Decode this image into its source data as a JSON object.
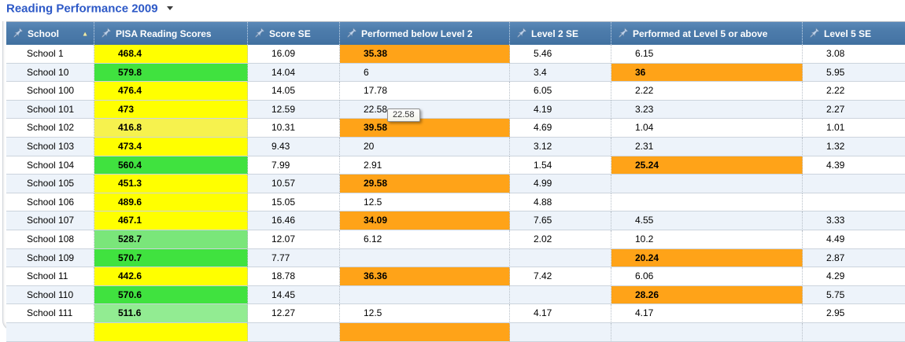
{
  "title": {
    "text": "Reading Performance 2009"
  },
  "tooltip": {
    "text": "22.58"
  },
  "cell_colors": {
    "yellow": "#ffff00",
    "yellow-pale": "#f6f24e",
    "green": "#40e23f",
    "green-light": "#7ae67a",
    "green-lighter": "#92ec92",
    "highlight": "#ffa318"
  },
  "table": {
    "columns": [
      {
        "id": "school",
        "label": "School",
        "sorted": "ascending"
      },
      {
        "id": "score",
        "label": "PISA Reading Scores",
        "sorted": ""
      },
      {
        "id": "score-se",
        "label": "Score SE",
        "sorted": ""
      },
      {
        "id": "below-level2",
        "label": "Performed below Level 2",
        "sorted": ""
      },
      {
        "id": "level2-se",
        "label": "Level 2 SE",
        "sorted": ""
      },
      {
        "id": "at-level5",
        "label": "Performed at Level 5 or above",
        "sorted": ""
      },
      {
        "id": "level5-se",
        "label": "Level 5 SE",
        "sorted": ""
      }
    ],
    "rows": [
      {
        "school": "School 1",
        "score": "468.4",
        "score_color": "yellow",
        "score_se": "16.09",
        "below": "35.38",
        "below_highlight": true,
        "l2_se": "5.46",
        "at_l5": "6.15",
        "l5_highlight": false,
        "l5_se": "3.08"
      },
      {
        "school": "School 10",
        "score": "579.8",
        "score_color": "green",
        "score_se": "14.04",
        "below": "6",
        "below_highlight": false,
        "l2_se": "3.4",
        "at_l5": "36",
        "l5_highlight": true,
        "l5_se": "5.95"
      },
      {
        "school": "School 100",
        "score": "476.4",
        "score_color": "yellow",
        "score_se": "14.05",
        "below": "17.78",
        "below_highlight": false,
        "l2_se": "6.05",
        "at_l5": "2.22",
        "l5_highlight": false,
        "l5_se": "2.22"
      },
      {
        "school": "School 101",
        "score": "473",
        "score_color": "yellow",
        "score_se": "12.59",
        "below": "22.58",
        "below_highlight": false,
        "l2_se": "4.19",
        "at_l5": "3.23",
        "l5_highlight": false,
        "l5_se": "2.27"
      },
      {
        "school": "School 102",
        "score": "416.8",
        "score_color": "yellow-pale",
        "score_se": "10.31",
        "below": "39.58",
        "below_highlight": true,
        "l2_se": "4.69",
        "at_l5": "1.04",
        "l5_highlight": false,
        "l5_se": "1.01"
      },
      {
        "school": "School 103",
        "score": "473.4",
        "score_color": "yellow",
        "score_se": "9.43",
        "below": "20",
        "below_highlight": false,
        "l2_se": "3.12",
        "at_l5": "2.31",
        "l5_highlight": false,
        "l5_se": "1.32"
      },
      {
        "school": "School 104",
        "score": "560.4",
        "score_color": "green",
        "score_se": "7.99",
        "below": "2.91",
        "below_highlight": false,
        "l2_se": "1.54",
        "at_l5": "25.24",
        "l5_highlight": true,
        "l5_se": "4.39"
      },
      {
        "school": "School 105",
        "score": "451.3",
        "score_color": "yellow",
        "score_se": "10.57",
        "below": "29.58",
        "below_highlight": true,
        "l2_se": "4.99",
        "at_l5": "",
        "l5_highlight": false,
        "l5_se": ""
      },
      {
        "school": "School 106",
        "score": "489.6",
        "score_color": "yellow",
        "score_se": "15.05",
        "below": "12.5",
        "below_highlight": false,
        "l2_se": "4.88",
        "at_l5": "",
        "l5_highlight": false,
        "l5_se": ""
      },
      {
        "school": "School 107",
        "score": "467.1",
        "score_color": "yellow",
        "score_se": "16.46",
        "below": "34.09",
        "below_highlight": true,
        "l2_se": "7.65",
        "at_l5": "4.55",
        "l5_highlight": false,
        "l5_se": "3.33"
      },
      {
        "school": "School 108",
        "score": "528.7",
        "score_color": "green-light",
        "score_se": "12.07",
        "below": "6.12",
        "below_highlight": false,
        "l2_se": "2.02",
        "at_l5": "10.2",
        "l5_highlight": false,
        "l5_se": "4.49"
      },
      {
        "school": "School 109",
        "score": "570.7",
        "score_color": "green",
        "score_se": "7.77",
        "below": "",
        "below_highlight": false,
        "l2_se": "",
        "at_l5": "20.24",
        "l5_highlight": true,
        "l5_se": "2.87"
      },
      {
        "school": "School 11",
        "score": "442.6",
        "score_color": "yellow",
        "score_se": "18.78",
        "below": "36.36",
        "below_highlight": true,
        "l2_se": "7.42",
        "at_l5": "6.06",
        "l5_highlight": false,
        "l5_se": "4.29"
      },
      {
        "school": "School 110",
        "score": "570.6",
        "score_color": "green",
        "score_se": "14.45",
        "below": "",
        "below_highlight": false,
        "l2_se": "",
        "at_l5": "28.26",
        "l5_highlight": true,
        "l5_se": "5.75"
      },
      {
        "school": "School 111",
        "score": "511.6",
        "score_color": "green-lighter",
        "score_se": "12.27",
        "below": "12.5",
        "below_highlight": false,
        "l2_se": "4.17",
        "at_l5": "4.17",
        "l5_highlight": false,
        "l5_se": "2.95"
      },
      {
        "school": "",
        "score": "",
        "score_color": "yellow",
        "score_se": "",
        "below": "",
        "below_highlight": true,
        "l2_se": "",
        "at_l5": "",
        "l5_highlight": false,
        "l5_se": ""
      }
    ]
  }
}
